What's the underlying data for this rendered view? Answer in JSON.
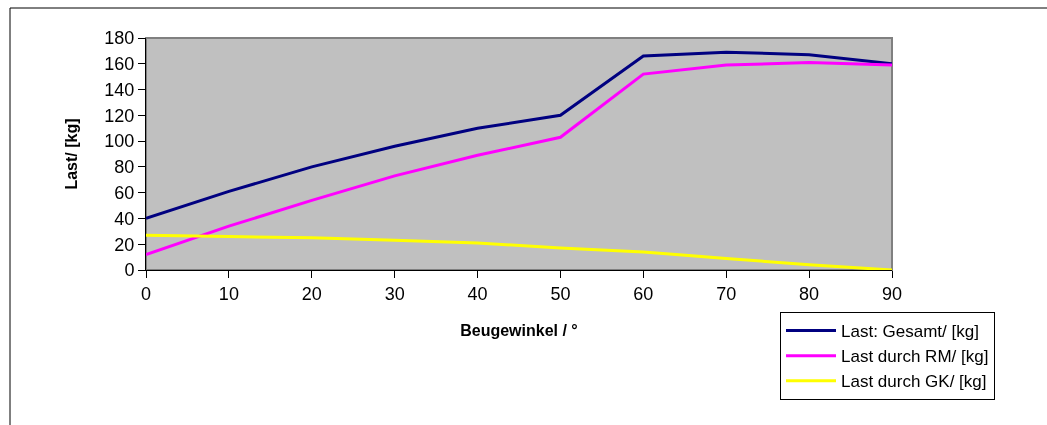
{
  "chart_data": {
    "type": "line",
    "xlabel": "Beugewinkel / °",
    "ylabel": "Last/ [kg]",
    "x": [
      0,
      10,
      20,
      30,
      40,
      50,
      60,
      70,
      80,
      90
    ],
    "series": [
      {
        "name": "Last: Gesamt/ [kg]",
        "color": "#000080",
        "values": [
          40,
          61,
          80,
          96,
          110,
          120,
          166,
          169,
          167,
          160
        ]
      },
      {
        "name": "Last durch RM/ [kg]",
        "color": "#ff00ff",
        "values": [
          12,
          34,
          54,
          73,
          89,
          103,
          152,
          159,
          161,
          159
        ]
      },
      {
        "name": "Last durch GK/ [kg]",
        "color": "#ffff00",
        "values": [
          27,
          26,
          25,
          23,
          21,
          17,
          14,
          9,
          4,
          0
        ]
      }
    ],
    "xlim": [
      0,
      90
    ],
    "xticks": [
      0,
      10,
      20,
      30,
      40,
      50,
      60,
      70,
      80,
      90
    ],
    "ylim": [
      0,
      180
    ],
    "yticks": [
      0,
      20,
      40,
      60,
      80,
      100,
      120,
      140,
      160,
      180
    ],
    "grid": false,
    "legend": "bottom right",
    "marker": "none",
    "line_style": "solid"
  }
}
